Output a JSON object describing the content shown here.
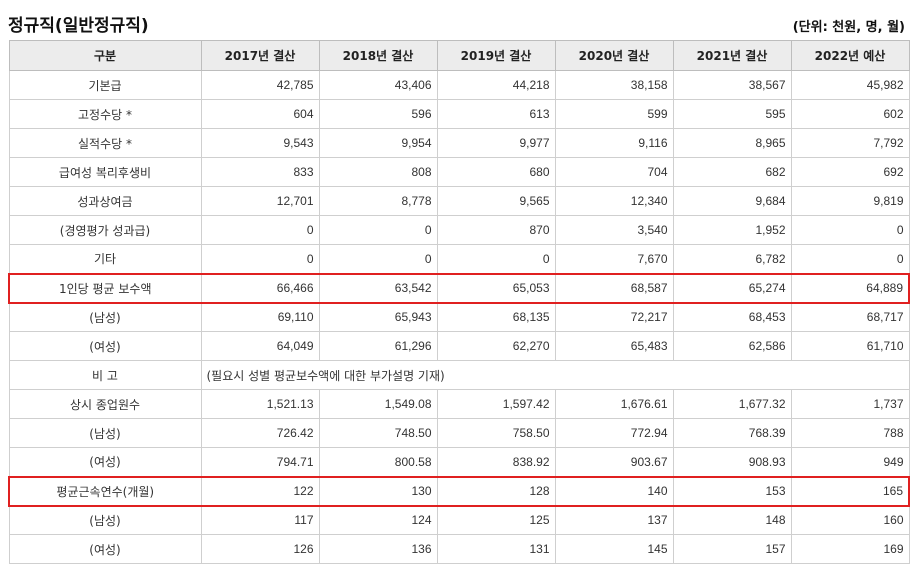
{
  "title": "정규직(일반정규직)",
  "unit": "(단위: 천원, 명, 월)",
  "headers": [
    "구분",
    "2017년 결산",
    "2018년 결산",
    "2019년 결산",
    "2020년 결산",
    "2021년 결산",
    "2022년 예산"
  ],
  "rows": [
    {
      "label": "기본급",
      "values": [
        "42,785",
        "43,406",
        "44,218",
        "38,158",
        "38,567",
        "45,982"
      ]
    },
    {
      "label": "고정수당 *",
      "values": [
        "604",
        "596",
        "613",
        "599",
        "595",
        "602"
      ]
    },
    {
      "label": "실적수당 *",
      "values": [
        "9,543",
        "9,954",
        "9,977",
        "9,116",
        "8,965",
        "7,792"
      ]
    },
    {
      "label": "급여성 복리후생비",
      "values": [
        "833",
        "808",
        "680",
        "704",
        "682",
        "692"
      ]
    },
    {
      "label": "성과상여금",
      "values": [
        "12,701",
        "8,778",
        "9,565",
        "12,340",
        "9,684",
        "9,819"
      ]
    },
    {
      "label": "(경영평가 성과급)",
      "values": [
        "0",
        "0",
        "870",
        "3,540",
        "1,952",
        "0"
      ]
    },
    {
      "label": "기타",
      "values": [
        "0",
        "0",
        "0",
        "7,670",
        "6,782",
        "0"
      ]
    },
    {
      "label": "1인당 평균 보수액",
      "values": [
        "66,466",
        "63,542",
        "65,053",
        "68,587",
        "65,274",
        "64,889"
      ],
      "highlight": true
    },
    {
      "label": "(남성)",
      "values": [
        "69,110",
        "65,943",
        "68,135",
        "72,217",
        "68,453",
        "68,717"
      ]
    },
    {
      "label": "(여성)",
      "values": [
        "64,049",
        "61,296",
        "62,270",
        "65,483",
        "62,586",
        "61,710"
      ]
    },
    {
      "label": "비 고",
      "note": "(필요시 성별 평균보수액에 대한 부가설명 기재)"
    },
    {
      "label": "상시 종업원수",
      "values": [
        "1,521.13",
        "1,549.08",
        "1,597.42",
        "1,676.61",
        "1,677.32",
        "1,737"
      ]
    },
    {
      "label": "(남성)",
      "values": [
        "726.42",
        "748.50",
        "758.50",
        "772.94",
        "768.39",
        "788"
      ]
    },
    {
      "label": "(여성)",
      "values": [
        "794.71",
        "800.58",
        "838.92",
        "903.67",
        "908.93",
        "949"
      ]
    },
    {
      "label": "평균근속연수(개월)",
      "values": [
        "122",
        "130",
        "128",
        "140",
        "153",
        "165"
      ],
      "highlight": true
    },
    {
      "label": "(남성)",
      "values": [
        "117",
        "124",
        "125",
        "137",
        "148",
        "160"
      ]
    },
    {
      "label": "(여성)",
      "values": [
        "126",
        "136",
        "131",
        "145",
        "157",
        "169"
      ]
    }
  ]
}
